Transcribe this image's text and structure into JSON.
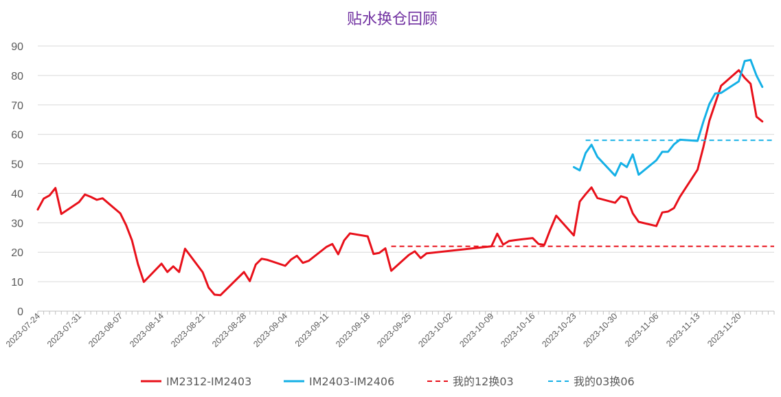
{
  "chart_data": {
    "type": "line",
    "title": "贴水换仓回顾",
    "xlabel": "",
    "ylabel": "",
    "ylim": [
      0,
      90
    ],
    "yticks": [
      0,
      10,
      20,
      30,
      40,
      50,
      60,
      70,
      80,
      90
    ],
    "xlim": [
      "2023-07-24",
      "2023-11-26"
    ],
    "xticks": [
      "2023-07-24",
      "2023-07-31",
      "2023-08-07",
      "2023-08-14",
      "2023-08-21",
      "2023-08-28",
      "2023-09-04",
      "2023-09-11",
      "2023-09-18",
      "2023-09-25",
      "2023-10-02",
      "2023-10-09",
      "2023-10-16",
      "2023-10-23",
      "2023-10-30",
      "2023-11-06",
      "2023-11-13",
      "2023-11-20"
    ],
    "grid": "horizontal",
    "legend_position": "bottom",
    "series": [
      {
        "name": "IM2312-IM2403",
        "color": "#E8101A",
        "style": "solid",
        "points": [
          [
            "2023-07-24",
            34.5
          ],
          [
            "2023-07-25",
            38.2
          ],
          [
            "2023-07-26",
            39.3
          ],
          [
            "2023-07-27",
            41.8
          ],
          [
            "2023-07-28",
            33.0
          ],
          [
            "2023-07-31",
            37.0
          ],
          [
            "2023-08-01",
            39.6
          ],
          [
            "2023-08-02",
            38.8
          ],
          [
            "2023-08-03",
            37.8
          ],
          [
            "2023-08-04",
            38.3
          ],
          [
            "2023-08-07",
            33.2
          ],
          [
            "2023-08-08",
            29.2
          ],
          [
            "2023-08-09",
            24.0
          ],
          [
            "2023-08-10",
            16.0
          ],
          [
            "2023-08-11",
            9.9
          ],
          [
            "2023-08-14",
            16.1
          ],
          [
            "2023-08-15",
            13.3
          ],
          [
            "2023-08-16",
            15.2
          ],
          [
            "2023-08-17",
            13.3
          ],
          [
            "2023-08-18",
            21.2
          ],
          [
            "2023-08-21",
            13.2
          ],
          [
            "2023-08-22",
            8.0
          ],
          [
            "2023-08-23",
            5.6
          ],
          [
            "2023-08-24",
            5.4
          ],
          [
            "2023-08-28",
            13.3
          ],
          [
            "2023-08-29",
            10.2
          ],
          [
            "2023-08-30",
            15.8
          ],
          [
            "2023-08-31",
            17.8
          ],
          [
            "2023-09-01",
            17.4
          ],
          [
            "2023-09-04",
            15.4
          ],
          [
            "2023-09-05",
            17.5
          ],
          [
            "2023-09-06",
            18.8
          ],
          [
            "2023-09-07",
            16.4
          ],
          [
            "2023-09-08",
            17.1
          ],
          [
            "2023-09-11",
            21.8
          ],
          [
            "2023-09-12",
            22.8
          ],
          [
            "2023-09-13",
            19.3
          ],
          [
            "2023-09-14",
            24.0
          ],
          [
            "2023-09-15",
            26.4
          ],
          [
            "2023-09-18",
            25.4
          ],
          [
            "2023-09-19",
            19.4
          ],
          [
            "2023-09-20",
            19.8
          ],
          [
            "2023-09-21",
            21.3
          ],
          [
            "2023-09-22",
            13.7
          ],
          [
            "2023-09-25",
            19.1
          ],
          [
            "2023-09-26",
            20.3
          ],
          [
            "2023-09-27",
            18.0
          ],
          [
            "2023-09-28",
            19.6
          ],
          [
            "2023-10-09",
            22.0
          ],
          [
            "2023-10-10",
            26.3
          ],
          [
            "2023-10-11",
            22.6
          ],
          [
            "2023-10-12",
            23.8
          ],
          [
            "2023-10-13",
            24.1
          ],
          [
            "2023-10-16",
            24.8
          ],
          [
            "2023-10-17",
            22.8
          ],
          [
            "2023-10-18",
            22.5
          ],
          [
            "2023-10-19",
            27.7
          ],
          [
            "2023-10-20",
            32.4
          ],
          [
            "2023-10-23",
            25.7
          ],
          [
            "2023-10-24",
            37.2
          ],
          [
            "2023-10-25",
            39.7
          ],
          [
            "2023-10-26",
            42.0
          ],
          [
            "2023-10-27",
            38.4
          ],
          [
            "2023-10-30",
            36.8
          ],
          [
            "2023-10-31",
            39.0
          ],
          [
            "2023-11-01",
            38.4
          ],
          [
            "2023-11-02",
            33.2
          ],
          [
            "2023-11-03",
            30.3
          ],
          [
            "2023-11-06",
            28.9
          ],
          [
            "2023-11-07",
            33.5
          ],
          [
            "2023-11-08",
            33.8
          ],
          [
            "2023-11-09",
            35.0
          ],
          [
            "2023-11-10",
            38.8
          ],
          [
            "2023-11-13",
            48.0
          ],
          [
            "2023-11-14",
            55.8
          ],
          [
            "2023-11-15",
            64.6
          ],
          [
            "2023-11-16",
            70.5
          ],
          [
            "2023-11-17",
            76.5
          ],
          [
            "2023-11-20",
            81.8
          ],
          [
            "2023-11-21",
            79.2
          ],
          [
            "2023-11-22",
            77.2
          ],
          [
            "2023-11-23",
            66.0
          ],
          [
            "2023-11-24",
            64.4
          ]
        ]
      },
      {
        "name": "IM2403-IM2406",
        "color": "#14B0E6",
        "style": "solid",
        "points": [
          [
            "2023-10-23",
            48.9
          ],
          [
            "2023-10-24",
            47.8
          ],
          [
            "2023-10-25",
            53.7
          ],
          [
            "2023-10-26",
            56.5
          ],
          [
            "2023-10-27",
            52.4
          ],
          [
            "2023-10-30",
            46.0
          ],
          [
            "2023-10-31",
            50.3
          ],
          [
            "2023-11-01",
            48.9
          ],
          [
            "2023-11-02",
            53.2
          ],
          [
            "2023-11-03",
            46.3
          ],
          [
            "2023-11-06",
            51.2
          ],
          [
            "2023-11-07",
            54.1
          ],
          [
            "2023-11-08",
            54.1
          ],
          [
            "2023-11-09",
            56.6
          ],
          [
            "2023-11-10",
            58.2
          ],
          [
            "2023-11-13",
            57.8
          ],
          [
            "2023-11-14",
            64.4
          ],
          [
            "2023-11-15",
            70.3
          ],
          [
            "2023-11-16",
            73.9
          ],
          [
            "2023-11-17",
            74.1
          ],
          [
            "2023-11-20",
            78.0
          ],
          [
            "2023-11-21",
            84.9
          ],
          [
            "2023-11-22",
            85.3
          ],
          [
            "2023-11-23",
            80.0
          ],
          [
            "2023-11-24",
            76.1
          ]
        ]
      },
      {
        "name": "我的12换03",
        "color": "#E8101A",
        "style": "dashed",
        "points": [
          [
            "2023-09-22",
            22.0
          ],
          [
            "2023-11-26",
            22.0
          ]
        ]
      },
      {
        "name": "我的03换06",
        "color": "#14B0E6",
        "style": "dashed",
        "points": [
          [
            "2023-10-25",
            58.0
          ],
          [
            "2023-11-26",
            58.0
          ]
        ]
      }
    ]
  }
}
